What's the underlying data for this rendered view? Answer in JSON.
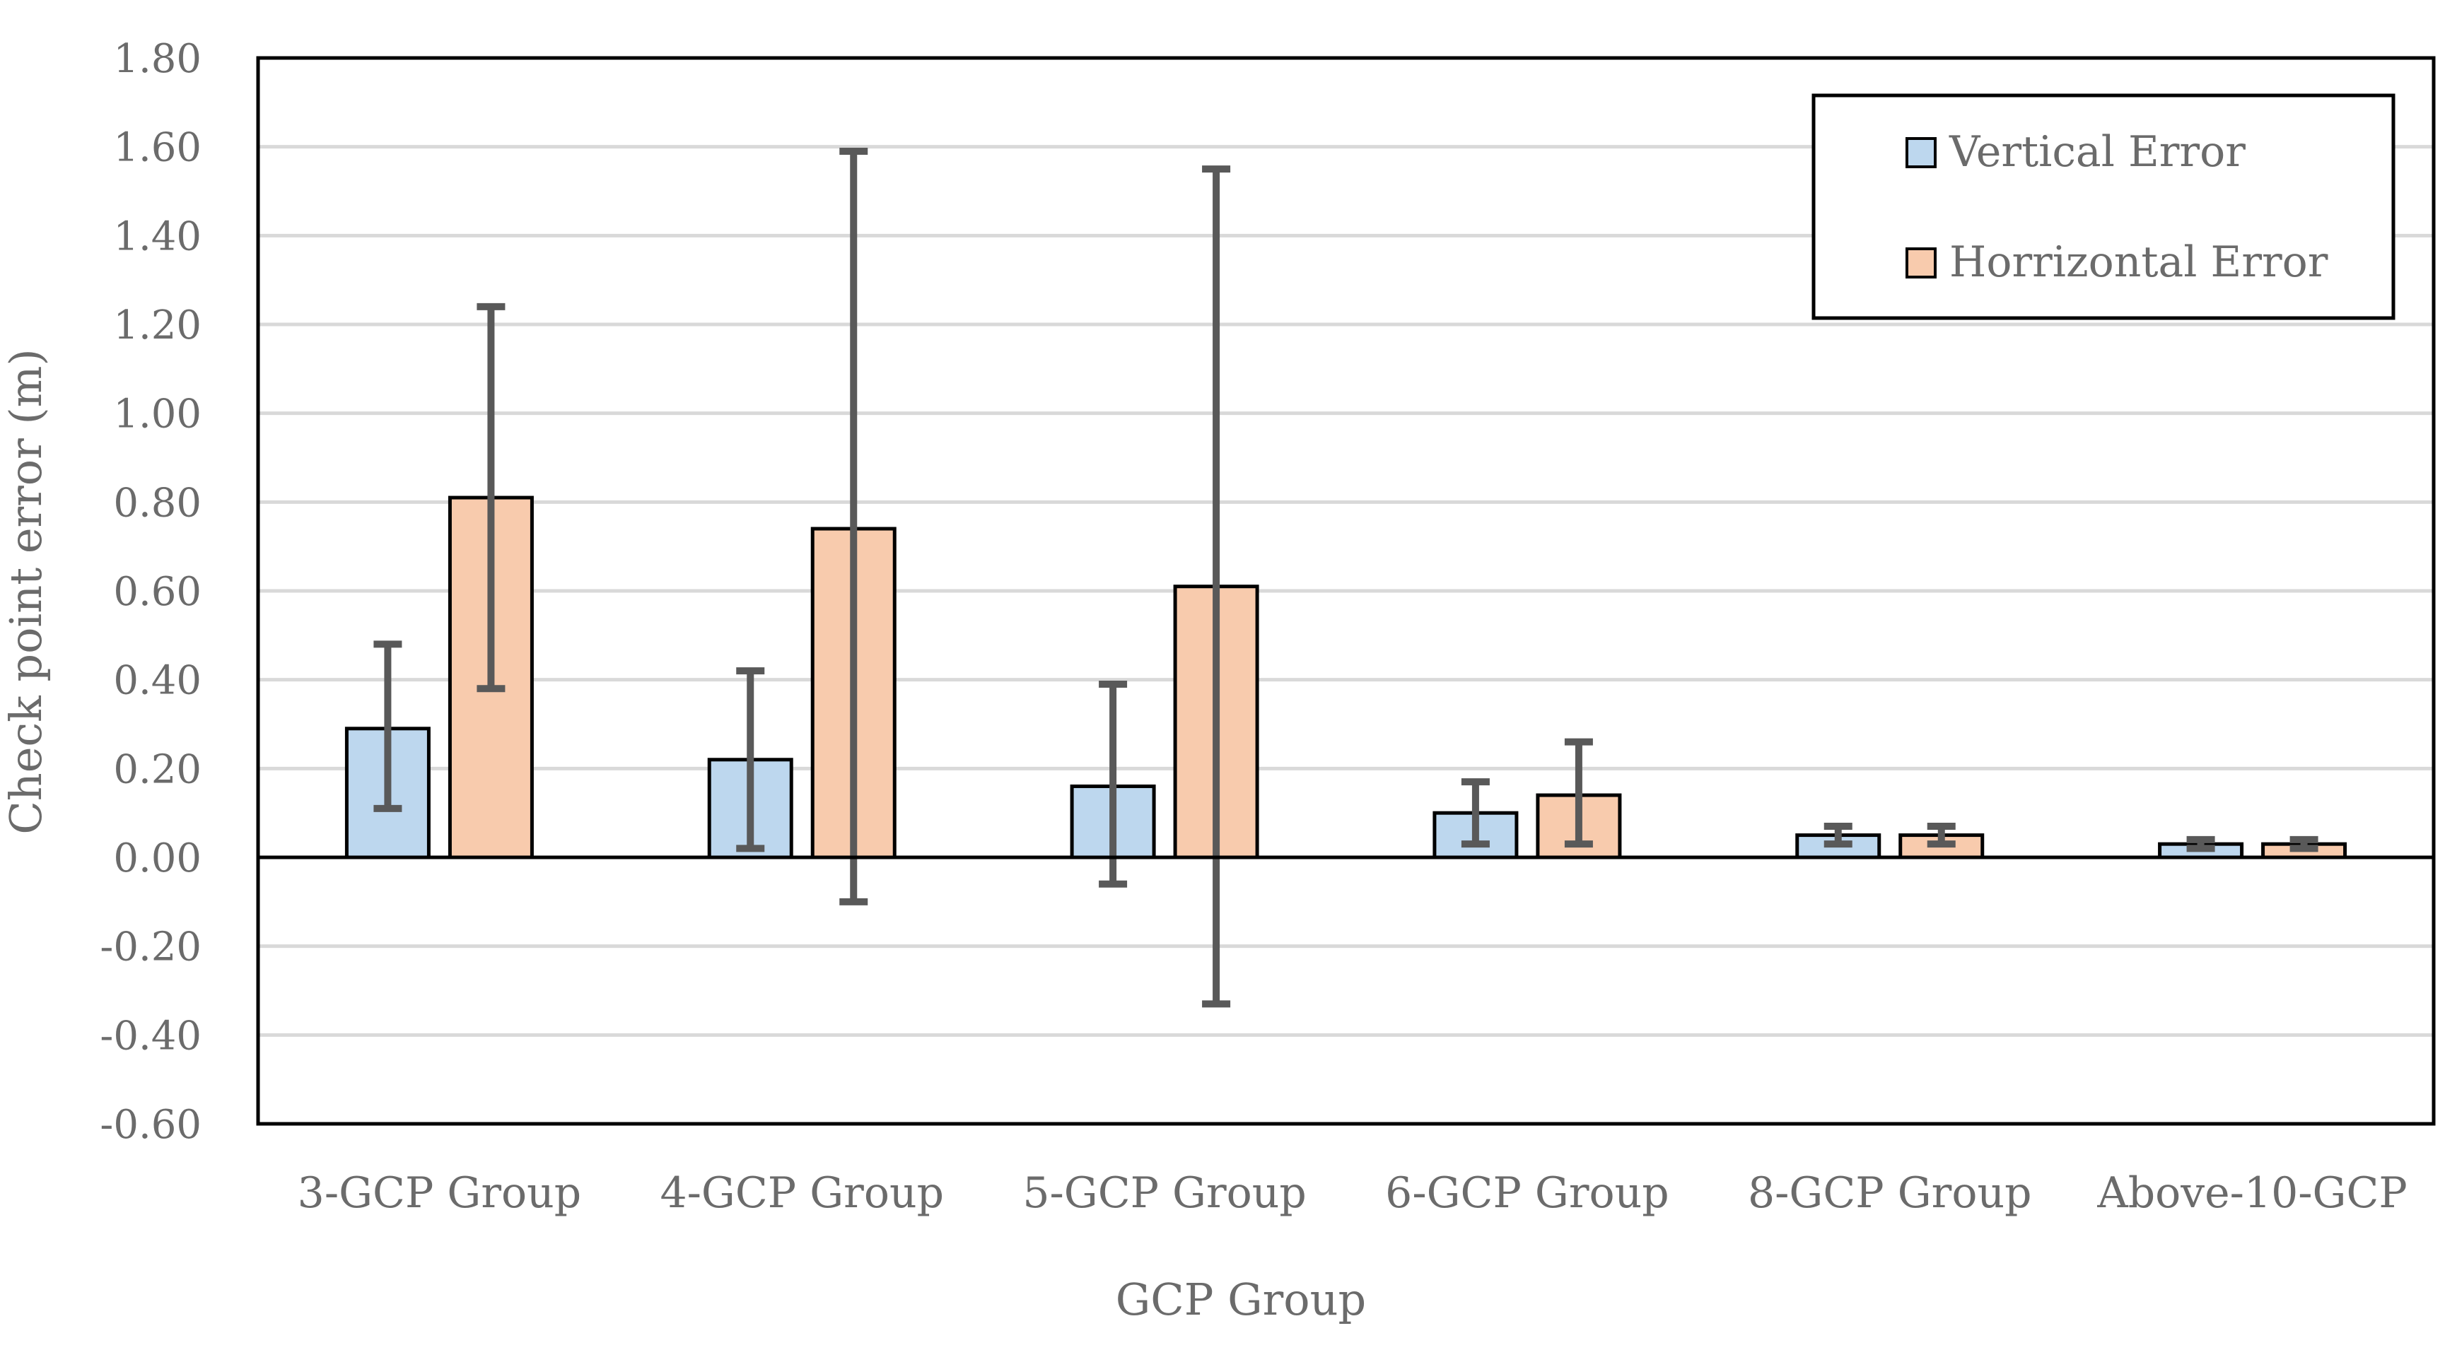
{
  "chart_data": {
    "type": "bar",
    "title": "",
    "xlabel": "GCP Group",
    "ylabel": "Check point error (m)",
    "ylim": [
      -0.6,
      1.8
    ],
    "yticks": [
      "1.80",
      "1.60",
      "1.40",
      "1.20",
      "1.00",
      "0.80",
      "0.60",
      "0.40",
      "0.20",
      "0.00",
      "-0.20",
      "-0.40",
      "-0.60"
    ],
    "ytick_values": [
      1.8,
      1.6,
      1.4,
      1.2,
      1.0,
      0.8,
      0.6,
      0.4,
      0.2,
      0.0,
      -0.2,
      -0.4,
      -0.6
    ],
    "grid": true,
    "legend_position": "top-right",
    "categories": [
      "3-GCP Group",
      "4-GCP Group",
      "5-GCP Group",
      "6-GCP Group",
      "8-GCP Group",
      "Above-10-GCP"
    ],
    "series": [
      {
        "name": "Vertical Error",
        "color": "#bdd7ee",
        "values": [
          0.29,
          0.22,
          0.16,
          0.1,
          0.05,
          0.03
        ],
        "error_low": [
          0.11,
          0.02,
          -0.06,
          0.03,
          0.03,
          0.02
        ],
        "error_high": [
          0.48,
          0.42,
          0.39,
          0.17,
          0.07,
          0.04
        ]
      },
      {
        "name": "Horrizontal Error",
        "color": "#f8cbad",
        "values": [
          0.81,
          0.74,
          0.61,
          0.14,
          0.05,
          0.03
        ],
        "error_low": [
          0.38,
          -0.1,
          -0.33,
          0.03,
          0.03,
          0.02
        ],
        "error_high": [
          1.24,
          1.59,
          1.55,
          0.26,
          0.07,
          0.04
        ]
      }
    ]
  }
}
